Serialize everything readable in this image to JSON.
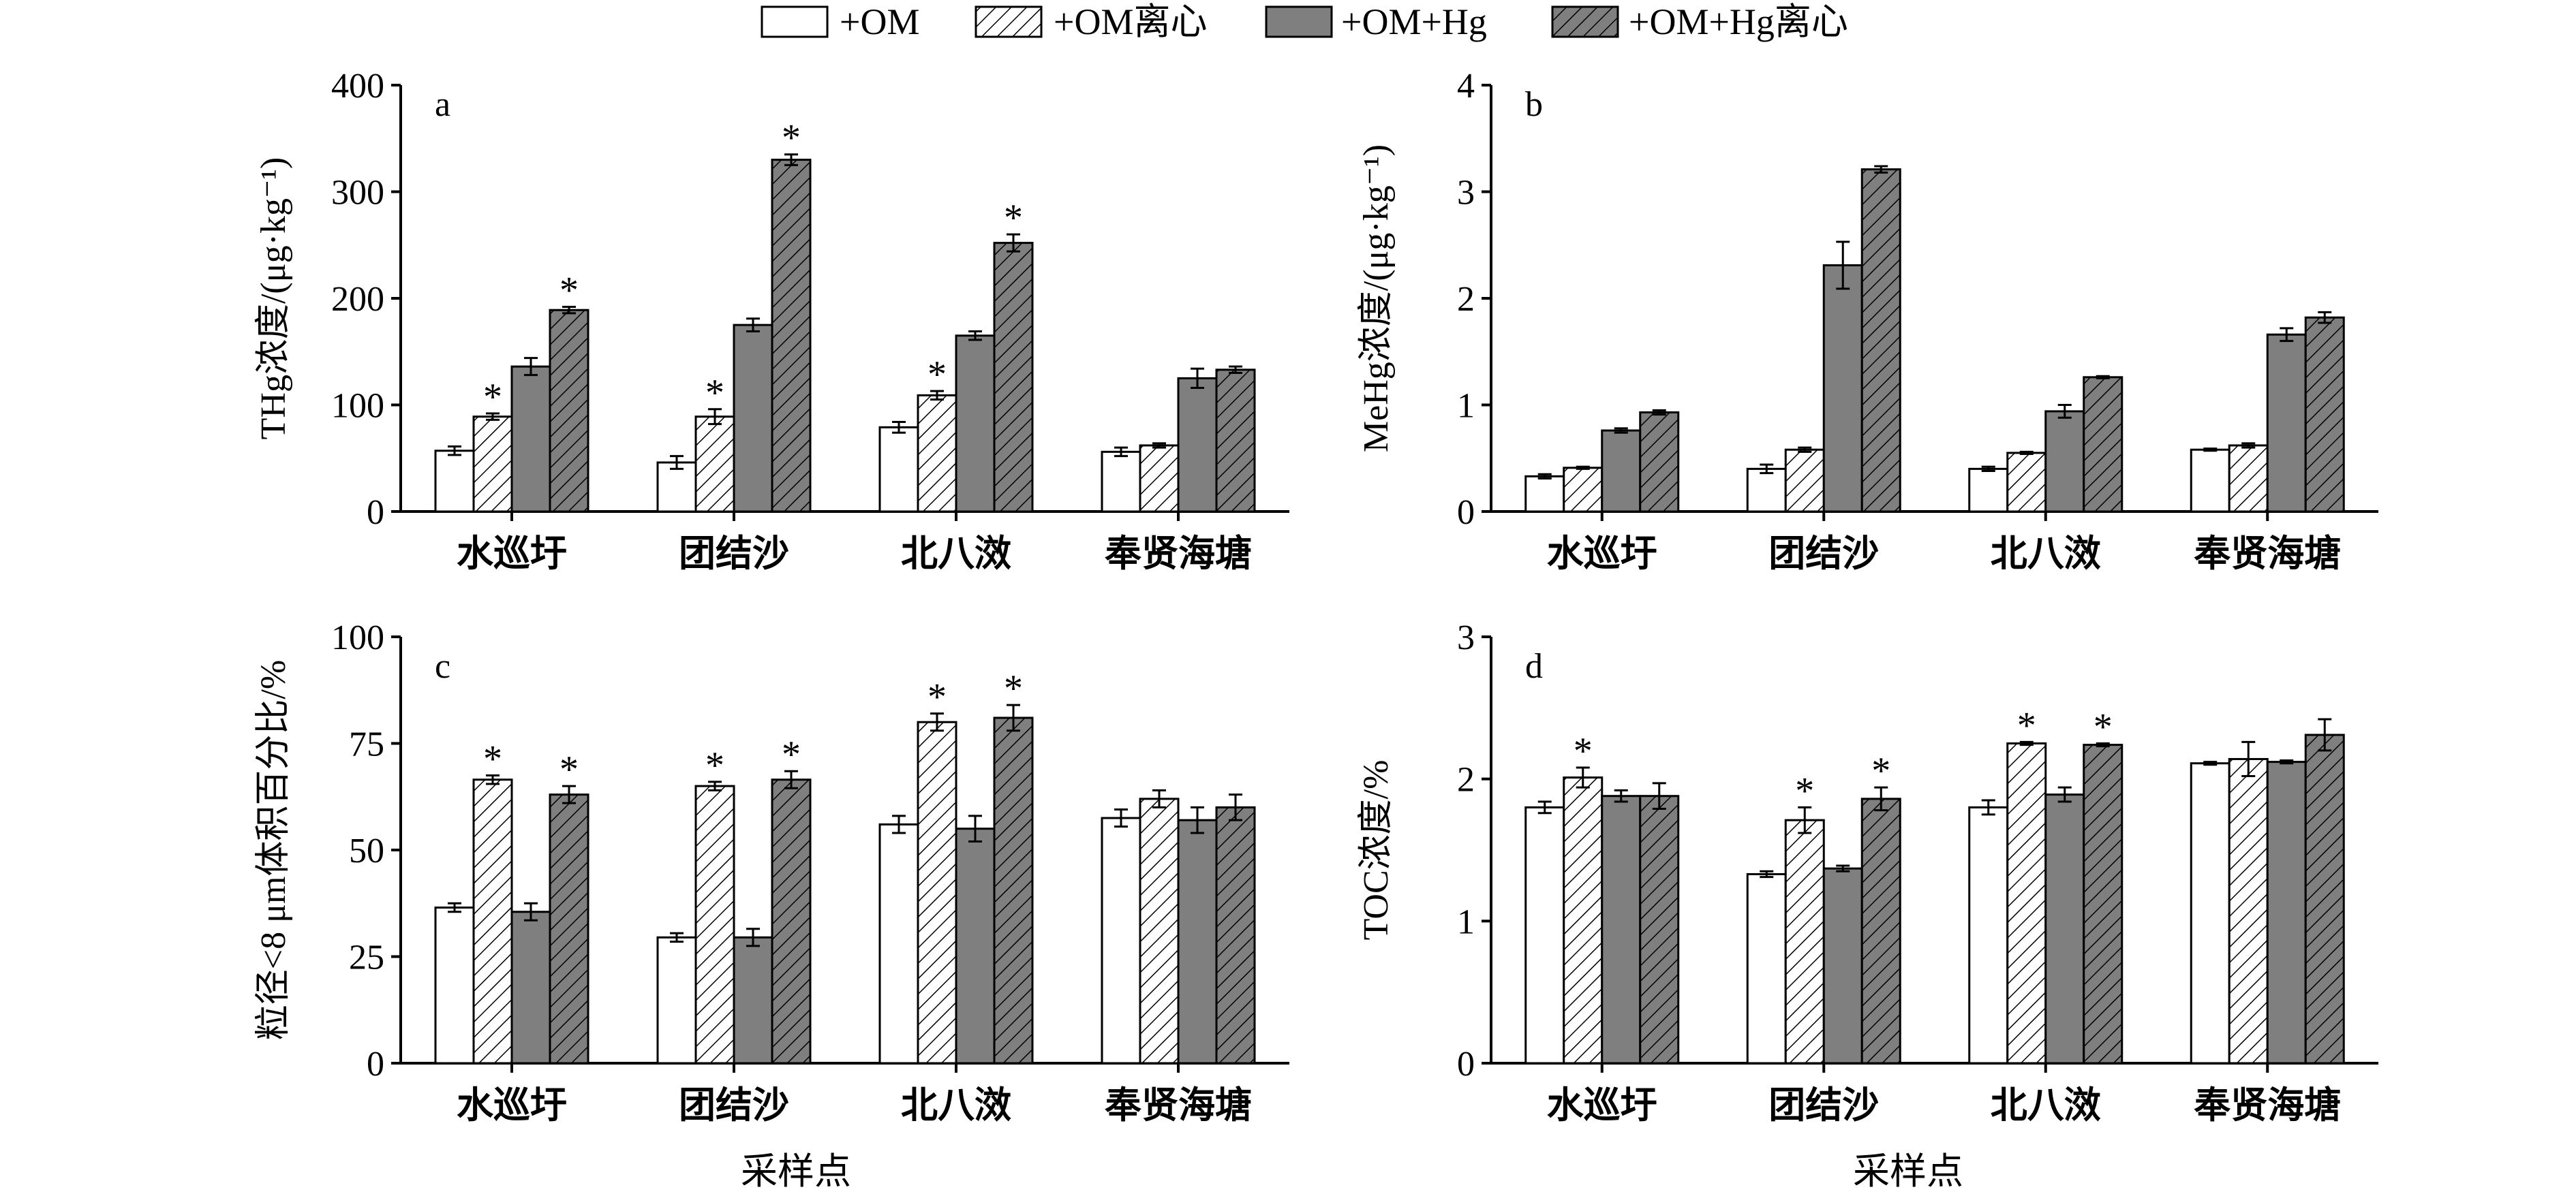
{
  "legend": [
    {
      "label": "+OM",
      "style": "white"
    },
    {
      "label": "+OM离心",
      "style": "hatch-white"
    },
    {
      "label": "+OM+Hg",
      "style": "gray"
    },
    {
      "label": "+OM+Hg离心",
      "style": "hatch-gray"
    }
  ],
  "colors": {
    "white": "#ffffff",
    "gray": "#7f7f7f",
    "stroke": "#000000"
  },
  "xlabel": "采样点",
  "chart_data": [
    {
      "type": "bar",
      "panel": "a",
      "ylabel": "THg浓度/(μg·kg⁻¹)",
      "ylim": [
        0,
        400
      ],
      "yticks": [
        0,
        100,
        200,
        300,
        400
      ],
      "categories": [
        "水巡圩",
        "团结沙",
        "北八滧",
        "奉贤海塘"
      ],
      "series": [
        {
          "name": "+OM",
          "values": [
            57,
            46,
            79,
            56
          ],
          "errors": [
            4,
            6,
            5,
            4
          ],
          "significant": [
            false,
            false,
            false,
            false
          ]
        },
        {
          "name": "+OM离心",
          "values": [
            89,
            89,
            109,
            62
          ],
          "errors": [
            3,
            7,
            4,
            2
          ],
          "significant": [
            true,
            true,
            true,
            false
          ]
        },
        {
          "name": "+OM+Hg",
          "values": [
            136,
            175,
            165,
            125
          ],
          "errors": [
            8,
            6,
            4,
            9
          ],
          "significant": [
            false,
            false,
            false,
            false
          ]
        },
        {
          "name": "+OM+Hg离心",
          "values": [
            189,
            330,
            252,
            133
          ],
          "errors": [
            3,
            5,
            8,
            3
          ],
          "significant": [
            true,
            true,
            true,
            false
          ]
        }
      ]
    },
    {
      "type": "bar",
      "panel": "b",
      "ylabel": "MeHg浓度/(μg·kg⁻¹)",
      "ylim": [
        0,
        4
      ],
      "yticks": [
        0,
        1,
        2,
        3,
        4
      ],
      "categories": [
        "水巡圩",
        "团结沙",
        "北八滧",
        "奉贤海塘"
      ],
      "series": [
        {
          "name": "+OM",
          "values": [
            0.33,
            0.4,
            0.4,
            0.58
          ],
          "errors": [
            0.02,
            0.04,
            0.02,
            0.01
          ],
          "significant": [
            false,
            false,
            false,
            false
          ]
        },
        {
          "name": "+OM离心",
          "values": [
            0.41,
            0.58,
            0.55,
            0.62
          ],
          "errors": [
            0.01,
            0.02,
            0.01,
            0.02
          ],
          "significant": [
            false,
            false,
            false,
            false
          ]
        },
        {
          "name": "+OM+Hg",
          "values": [
            0.76,
            2.31,
            0.94,
            1.66
          ],
          "errors": [
            0.02,
            0.22,
            0.06,
            0.06
          ],
          "significant": [
            false,
            false,
            false,
            false
          ]
        },
        {
          "name": "+OM+Hg离心",
          "values": [
            0.93,
            3.21,
            1.26,
            1.82
          ],
          "errors": [
            0.02,
            0.03,
            0.01,
            0.05
          ],
          "significant": [
            false,
            false,
            false,
            false
          ]
        }
      ]
    },
    {
      "type": "bar",
      "panel": "c",
      "ylabel": "粒径<8 μm体积百分比/%",
      "ylim": [
        0,
        100
      ],
      "yticks": [
        0,
        25,
        50,
        75,
        100
      ],
      "categories": [
        "水巡圩",
        "团结沙",
        "北八滧",
        "奉贤海塘"
      ],
      "series": [
        {
          "name": "+OM",
          "values": [
            36.5,
            29.5,
            56,
            57.5
          ],
          "errors": [
            1,
            1,
            2,
            2
          ],
          "significant": [
            false,
            false,
            false,
            false
          ]
        },
        {
          "name": "+OM离心",
          "values": [
            66.5,
            65,
            80,
            62
          ],
          "errors": [
            1,
            1,
            2,
            2
          ],
          "significant": [
            true,
            true,
            true,
            false
          ]
        },
        {
          "name": "+OM+Hg",
          "values": [
            35.5,
            29.5,
            55,
            57
          ],
          "errors": [
            2,
            2,
            3,
            3
          ],
          "significant": [
            false,
            false,
            false,
            false
          ]
        },
        {
          "name": "+OM+Hg离心",
          "values": [
            63,
            66.5,
            81,
            60
          ],
          "errors": [
            2,
            2,
            3,
            3
          ],
          "significant": [
            true,
            true,
            true,
            false
          ]
        }
      ]
    },
    {
      "type": "bar",
      "panel": "d",
      "ylabel": "TOC浓度/%",
      "ylim": [
        0,
        3
      ],
      "yticks": [
        0,
        1,
        2,
        3
      ],
      "categories": [
        "水巡圩",
        "团结沙",
        "北八滧",
        "奉贤海塘"
      ],
      "series": [
        {
          "name": "+OM",
          "values": [
            1.8,
            1.33,
            1.8,
            2.11
          ],
          "errors": [
            0.04,
            0.02,
            0.05,
            0.01
          ],
          "significant": [
            false,
            false,
            false,
            false
          ]
        },
        {
          "name": "+OM离心",
          "values": [
            2.01,
            1.71,
            2.25,
            2.14
          ],
          "errors": [
            0.07,
            0.09,
            0.01,
            0.12
          ],
          "significant": [
            true,
            true,
            true,
            false
          ]
        },
        {
          "name": "+OM+Hg",
          "values": [
            1.88,
            1.37,
            1.89,
            2.12
          ],
          "errors": [
            0.04,
            0.02,
            0.05,
            0.01
          ],
          "significant": [
            false,
            false,
            false,
            false
          ]
        },
        {
          "name": "+OM+Hg离心",
          "values": [
            1.88,
            1.86,
            2.24,
            2.31
          ],
          "errors": [
            0.09,
            0.08,
            0.01,
            0.11
          ],
          "significant": [
            false,
            true,
            true,
            false
          ]
        }
      ]
    }
  ]
}
